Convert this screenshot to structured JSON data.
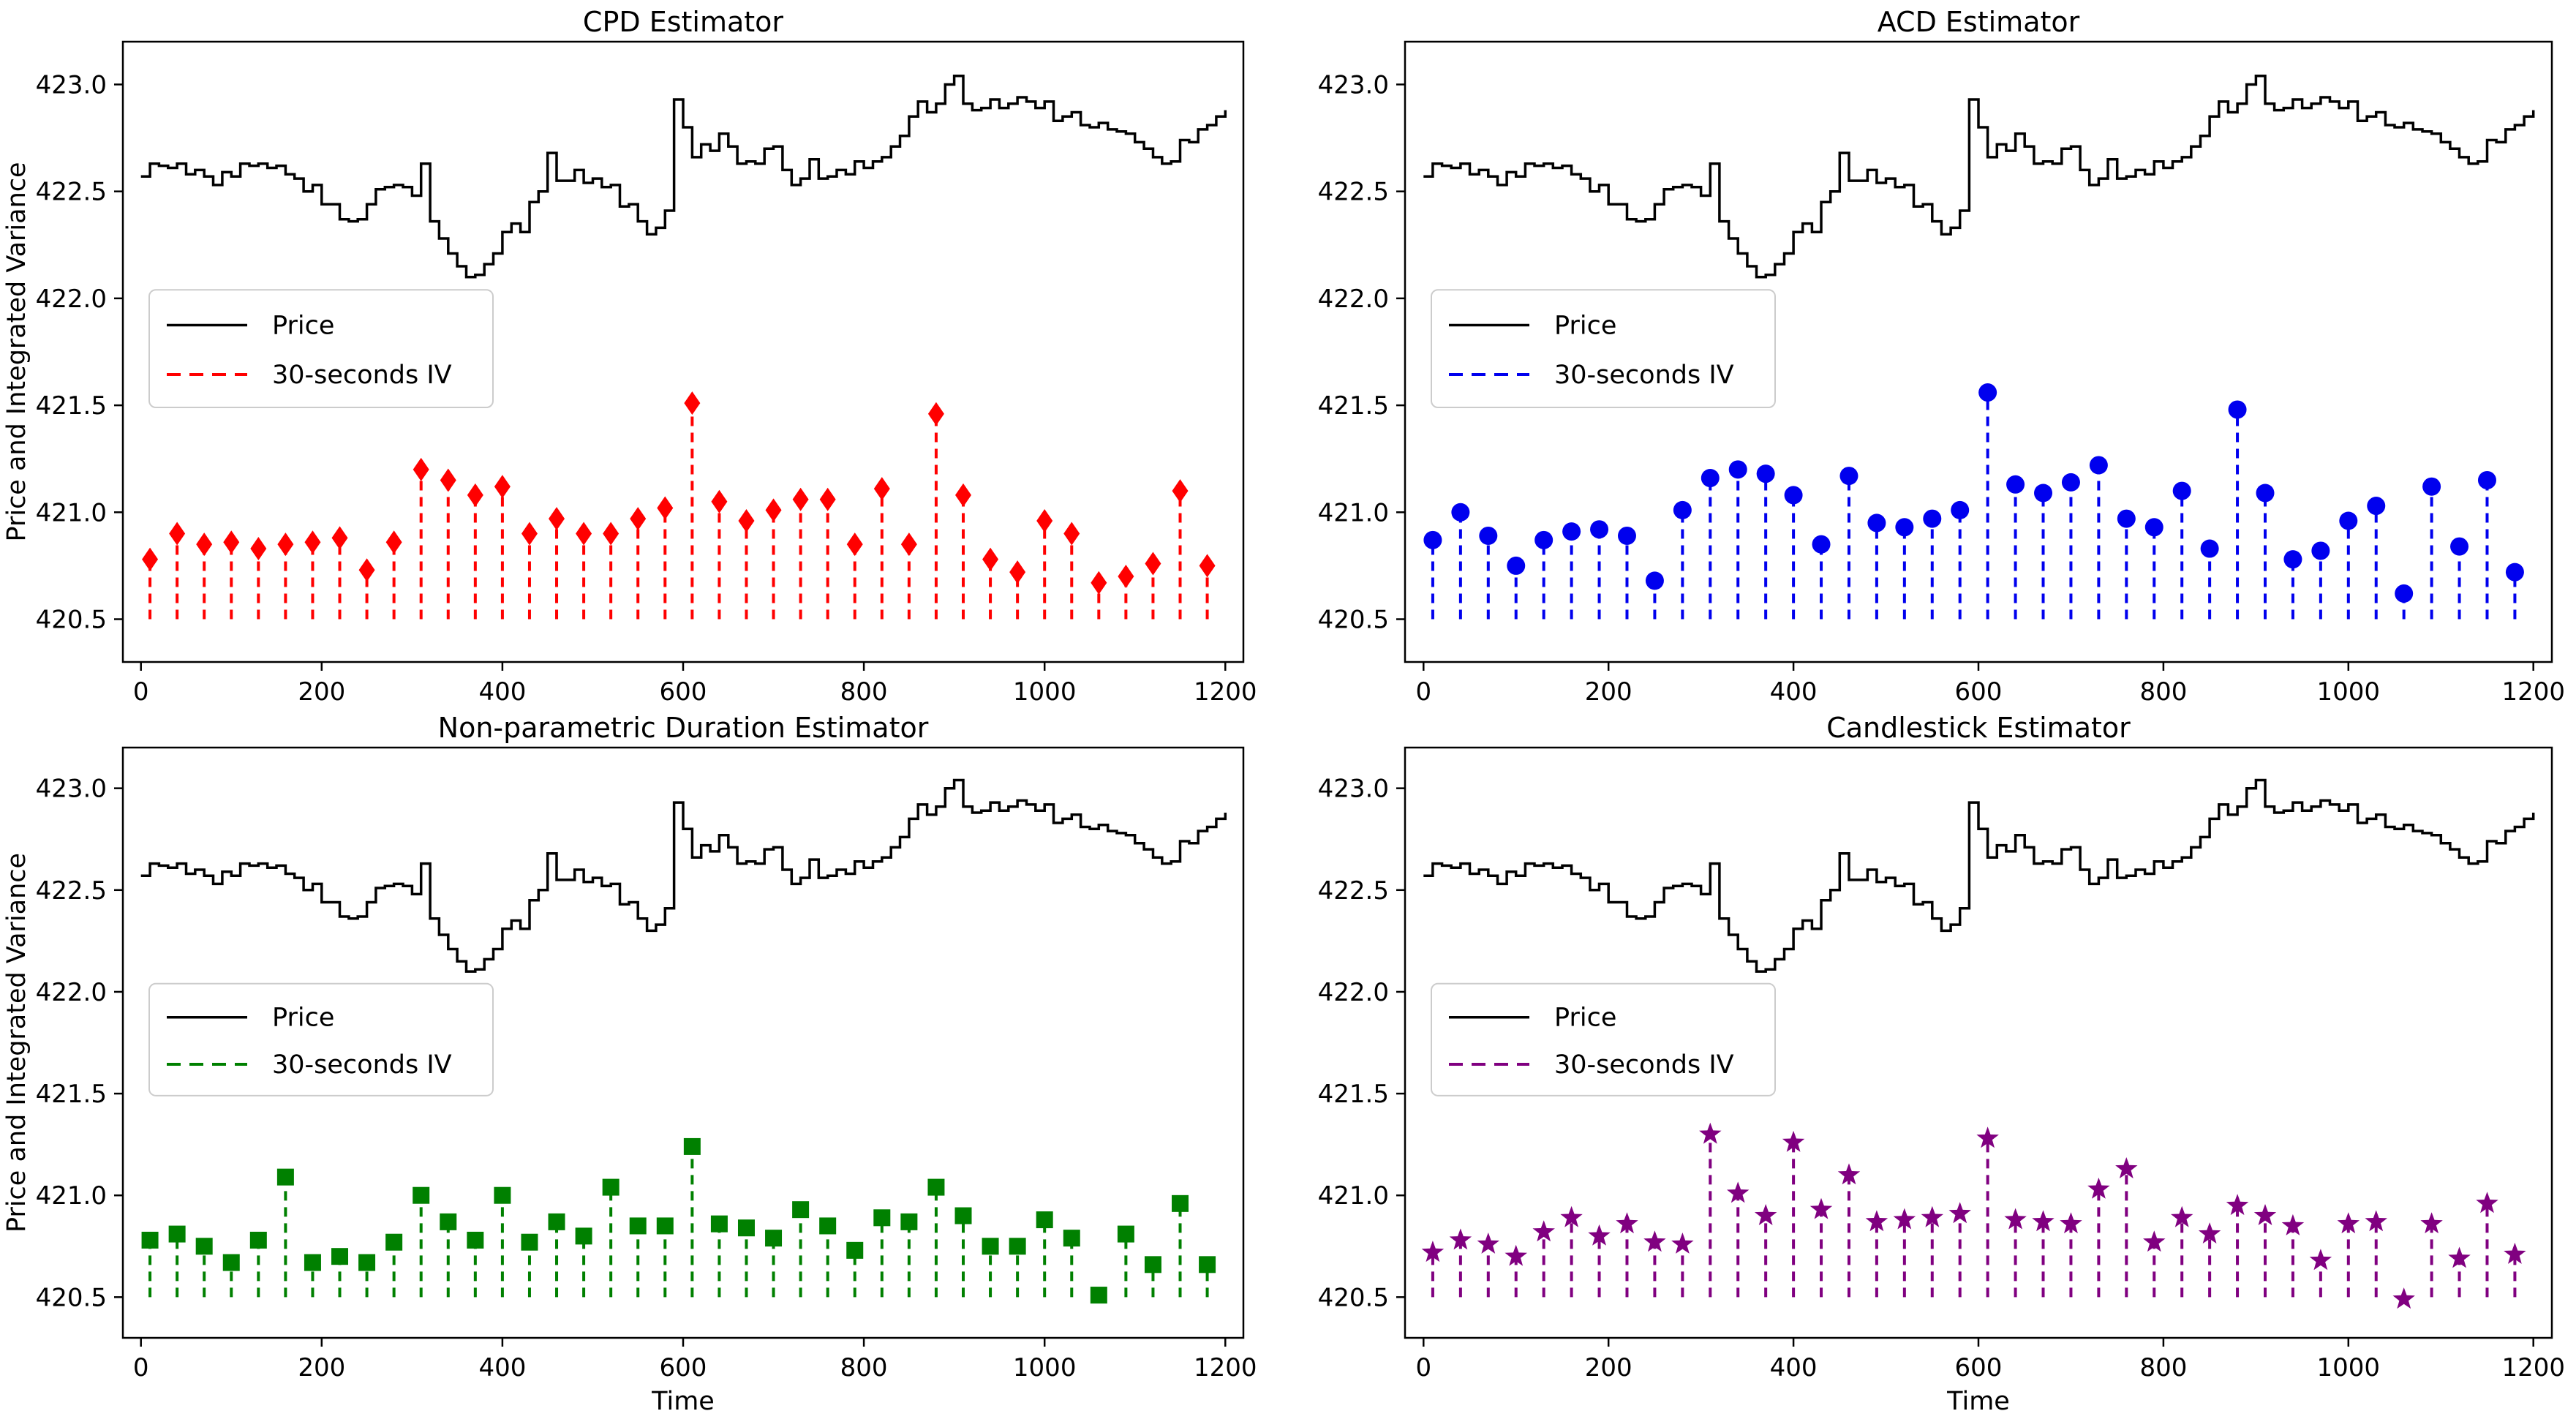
{
  "figure": {
    "background": "#ffffff",
    "ylabel": "Price and Integrated Variance",
    "xlabel": "Time",
    "legend": {
      "price_label": "Price",
      "iv_label": "30-seconds IV"
    },
    "x_ticks": [
      0,
      200,
      400,
      600,
      800,
      1000,
      1200
    ],
    "y_ticks": [
      420.5,
      421.0,
      421.5,
      422.0,
      422.5,
      423.0
    ],
    "xlim": [
      -20,
      1220
    ],
    "ylim": [
      420.3,
      423.2
    ],
    "price_color": "#000000",
    "axis_color": "#000000"
  },
  "price_series": {
    "name": "Price",
    "x_start": 0,
    "x_step": 10,
    "y": [
      422.57,
      422.63,
      422.62,
      422.61,
      422.63,
      422.58,
      422.6,
      422.57,
      422.53,
      422.59,
      422.57,
      422.63,
      422.62,
      422.63,
      422.61,
      422.62,
      422.58,
      422.56,
      422.5,
      422.53,
      422.44,
      422.44,
      422.37,
      422.36,
      422.37,
      422.44,
      422.51,
      422.52,
      422.53,
      422.52,
      422.48,
      422.63,
      422.36,
      422.28,
      422.21,
      422.15,
      422.1,
      422.11,
      422.16,
      422.21,
      422.31,
      422.35,
      422.31,
      422.45,
      422.5,
      422.68,
      422.55,
      422.55,
      422.6,
      422.54,
      422.56,
      422.52,
      422.53,
      422.43,
      422.44,
      422.36,
      422.3,
      422.33,
      422.41,
      422.93,
      422.8,
      422.66,
      422.72,
      422.69,
      422.77,
      422.71,
      422.63,
      422.64,
      422.63,
      422.7,
      422.71,
      422.6,
      422.53,
      422.56,
      422.65,
      422.56,
      422.57,
      422.6,
      422.58,
      422.64,
      422.61,
      422.64,
      422.66,
      422.71,
      422.76,
      422.85,
      422.92,
      422.87,
      422.91,
      423.0,
      423.04,
      422.91,
      422.88,
      422.89,
      422.93,
      422.89,
      422.91,
      422.94,
      422.92,
      422.89,
      422.92,
      422.83,
      422.85,
      422.87,
      422.81,
      422.8,
      422.82,
      422.79,
      422.78,
      422.77,
      422.73,
      422.7,
      422.66,
      422.63,
      422.64,
      422.74,
      422.73,
      422.79,
      422.81,
      422.85,
      422.88
    ]
  },
  "chart_data": [
    {
      "type": "line+stem",
      "title": "CPD Estimator",
      "grid_pos": "top-left",
      "ylabel_shown": true,
      "xlabel": "Time",
      "legend_entries": [
        "Price",
        "30-seconds IV"
      ],
      "stem": {
        "name": "30-seconds IV",
        "color": "#ff0000",
        "marker": "diamond",
        "baseline": 420.5,
        "x_start": 10,
        "x_step": 30,
        "values": [
          420.78,
          420.9,
          420.85,
          420.86,
          420.83,
          420.85,
          420.86,
          420.88,
          420.73,
          420.86,
          421.2,
          421.15,
          421.08,
          421.12,
          420.9,
          420.97,
          420.9,
          420.9,
          420.97,
          421.02,
          421.51,
          421.05,
          420.96,
          421.01,
          421.06,
          421.06,
          420.85,
          421.11,
          420.85,
          421.46,
          421.08,
          420.78,
          420.72,
          420.96,
          420.9,
          420.67,
          420.7,
          420.76,
          421.1,
          420.75
        ]
      }
    },
    {
      "type": "line+stem",
      "title": "ACD Estimator",
      "grid_pos": "top-right",
      "ylabel_shown": false,
      "xlabel": "Time",
      "legend_entries": [
        "Price",
        "30-seconds IV"
      ],
      "stem": {
        "name": "30-seconds IV",
        "color": "#0000ee",
        "marker": "circle",
        "baseline": 420.5,
        "x_start": 10,
        "x_step": 30,
        "values": [
          420.87,
          421.0,
          420.89,
          420.75,
          420.87,
          420.91,
          420.92,
          420.89,
          420.68,
          421.01,
          421.16,
          421.2,
          421.18,
          421.08,
          420.85,
          421.17,
          420.95,
          420.93,
          420.97,
          421.01,
          421.56,
          421.13,
          421.09,
          421.14,
          421.22,
          420.97,
          420.93,
          421.1,
          420.83,
          421.48,
          421.09,
          420.78,
          420.82,
          420.96,
          421.03,
          420.62,
          421.12,
          420.84,
          421.15,
          420.72
        ]
      }
    },
    {
      "type": "line+stem",
      "title": "Non-parametric Duration Estimator",
      "grid_pos": "bottom-left",
      "ylabel_shown": true,
      "xlabel": "Time",
      "legend_entries": [
        "Price",
        "30-seconds IV"
      ],
      "stem": {
        "name": "30-seconds IV",
        "color": "#008000",
        "marker": "square",
        "baseline": 420.5,
        "x_start": 10,
        "x_step": 30,
        "values": [
          420.78,
          420.81,
          420.75,
          420.67,
          420.78,
          421.09,
          420.67,
          420.7,
          420.67,
          420.77,
          421.0,
          420.87,
          420.78,
          421.0,
          420.77,
          420.87,
          420.8,
          421.04,
          420.85,
          420.85,
          421.24,
          420.86,
          420.84,
          420.79,
          420.93,
          420.85,
          420.73,
          420.89,
          420.87,
          421.04,
          420.9,
          420.75,
          420.75,
          420.88,
          420.79,
          420.51,
          420.81,
          420.66,
          420.96,
          420.66
        ]
      }
    },
    {
      "type": "line+stem",
      "title": "Candlestick Estimator",
      "grid_pos": "bottom-right",
      "ylabel_shown": false,
      "xlabel": "Time",
      "legend_entries": [
        "Price",
        "30-seconds IV"
      ],
      "stem": {
        "name": "30-seconds IV",
        "color": "#800080",
        "marker": "star",
        "baseline": 420.5,
        "x_start": 10,
        "x_step": 30,
        "values": [
          420.72,
          420.78,
          420.76,
          420.7,
          420.82,
          420.89,
          420.8,
          420.86,
          420.77,
          420.76,
          421.3,
          421.01,
          420.9,
          421.26,
          420.93,
          421.1,
          420.87,
          420.88,
          420.89,
          420.91,
          421.28,
          420.88,
          420.87,
          420.86,
          421.03,
          421.13,
          420.77,
          420.89,
          420.81,
          420.95,
          420.9,
          420.85,
          420.68,
          420.86,
          420.87,
          420.49,
          420.86,
          420.69,
          420.96,
          420.71
        ]
      }
    }
  ]
}
